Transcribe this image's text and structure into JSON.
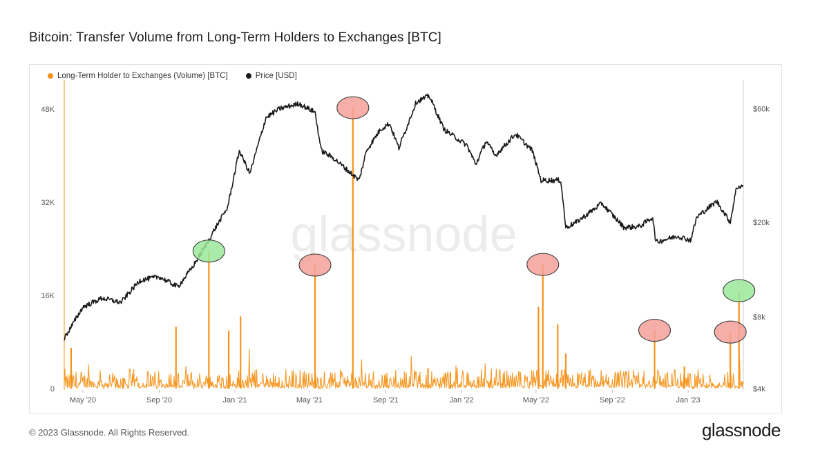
{
  "page": {
    "title": "Bitcoin: Transfer Volume from Long-Term Holders to Exchanges [BTC]",
    "copyright": "© 2023 Glassnode. All Rights Reserved.",
    "logo_text": "glassnode",
    "watermark": "glassnode"
  },
  "colors": {
    "volume": "#f7931a",
    "price": "#1a1a1a",
    "highlight_red": "#f4a09a",
    "highlight_green": "#9be89b"
  },
  "chart_data": {
    "type": "line",
    "legend": [
      {
        "name": "Long-Term Holder to Exchanges (Volume) [BTC]",
        "color": "#f7931a"
      },
      {
        "name": "Price [USD]",
        "color": "#1a1a1a"
      }
    ],
    "x_ticks": [
      "May '20",
      "Sep '20",
      "Jan '21",
      "May '21",
      "Sep '21",
      "Jan '22",
      "May '22",
      "Sep '22",
      "Jan '23"
    ],
    "x_range": [
      "2020-04-01",
      "2023-03-31"
    ],
    "y_left": {
      "ticks": [
        "0",
        "16K",
        "32K",
        "48K"
      ],
      "range": [
        0,
        52000
      ]
    },
    "y_right": {
      "ticks": [
        "$4k",
        "$8k",
        "$20k",
        "$60k"
      ],
      "scale": "log",
      "range": [
        4000,
        75000
      ]
    },
    "series": [
      {
        "name": "Price [USD]",
        "axis": "right",
        "points": [
          [
            "2020-04-01",
            6500
          ],
          [
            "2020-05-01",
            8800
          ],
          [
            "2020-06-01",
            9600
          ],
          [
            "2020-07-01",
            9200
          ],
          [
            "2020-08-01",
            11400
          ],
          [
            "2020-09-01",
            11800
          ],
          [
            "2020-10-01",
            10700
          ],
          [
            "2020-10-25",
            13000
          ],
          [
            "2020-11-15",
            16000
          ],
          [
            "2020-12-01",
            19000
          ],
          [
            "2020-12-20",
            23000
          ],
          [
            "2021-01-08",
            40000
          ],
          [
            "2021-01-25",
            32000
          ],
          [
            "2021-02-20",
            55000
          ],
          [
            "2021-03-14",
            60000
          ],
          [
            "2021-04-14",
            63000
          ],
          [
            "2021-05-10",
            58000
          ],
          [
            "2021-05-20",
            40000
          ],
          [
            "2021-06-10",
            37000
          ],
          [
            "2021-07-20",
            30000
          ],
          [
            "2021-08-01",
            40000
          ],
          [
            "2021-08-23",
            49000
          ],
          [
            "2021-09-07",
            52000
          ],
          [
            "2021-09-22",
            41000
          ],
          [
            "2021-10-20",
            64000
          ],
          [
            "2021-11-10",
            68000
          ],
          [
            "2021-12-04",
            49000
          ],
          [
            "2022-01-10",
            42000
          ],
          [
            "2022-01-24",
            35000
          ],
          [
            "2022-02-10",
            44000
          ],
          [
            "2022-02-24",
            38000
          ],
          [
            "2022-03-29",
            47000
          ],
          [
            "2022-04-25",
            40000
          ],
          [
            "2022-05-09",
            30000
          ],
          [
            "2022-06-10",
            30000
          ],
          [
            "2022-06-18",
            19000
          ],
          [
            "2022-07-05",
            20000
          ],
          [
            "2022-08-15",
            24000
          ],
          [
            "2022-09-20",
            19000
          ],
          [
            "2022-10-15",
            19200
          ],
          [
            "2022-11-05",
            21000
          ],
          [
            "2022-11-10",
            16500
          ],
          [
            "2022-12-15",
            17500
          ],
          [
            "2023-01-05",
            16800
          ],
          [
            "2023-01-15",
            21000
          ],
          [
            "2023-02-16",
            24500
          ],
          [
            "2023-03-10",
            20000
          ],
          [
            "2023-03-20",
            28000
          ],
          [
            "2023-03-31",
            28500
          ]
        ]
      },
      {
        "name": "Long-Term Holder to Exchanges (Volume) [BTC]",
        "axis": "left",
        "spikes": [
          [
            "2020-04-12",
            7000
          ],
          [
            "2020-07-05",
            1800
          ],
          [
            "2020-09-28",
            10600
          ],
          [
            "2020-11-20",
            23600
          ],
          [
            "2020-12-22",
            10000
          ],
          [
            "2021-01-10",
            12400
          ],
          [
            "2021-05-10",
            21200
          ],
          [
            "2021-07-10",
            48200
          ],
          [
            "2021-11-08",
            3500
          ],
          [
            "2021-12-14",
            2800
          ],
          [
            "2022-05-05",
            14000
          ],
          [
            "2022-05-12",
            21300
          ],
          [
            "2022-06-05",
            11000
          ],
          [
            "2022-06-18",
            6000
          ],
          [
            "2022-11-08",
            10000
          ],
          [
            "2022-12-26",
            3800
          ],
          [
            "2023-03-10",
            9700
          ],
          [
            "2023-03-24",
            16800
          ]
        ]
      }
    ],
    "annotations": [
      {
        "date": "2020-11-20",
        "value": 23600,
        "color": "green"
      },
      {
        "date": "2021-05-10",
        "value": 21200,
        "color": "red"
      },
      {
        "date": "2021-07-10",
        "value": 48200,
        "color": "red"
      },
      {
        "date": "2022-05-12",
        "value": 21300,
        "color": "red"
      },
      {
        "date": "2022-11-08",
        "value": 10000,
        "color": "red"
      },
      {
        "date": "2023-03-10",
        "value": 9700,
        "color": "red"
      },
      {
        "date": "2023-03-24",
        "value": 16800,
        "color": "green"
      }
    ]
  }
}
